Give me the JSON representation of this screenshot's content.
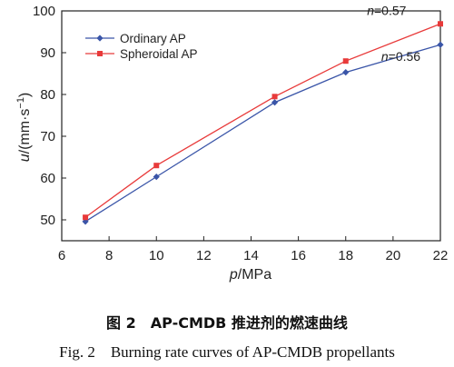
{
  "chart_data": {
    "type": "line",
    "xlabel": {
      "italic": "p",
      "rest": "/MPa"
    },
    "ylabel": {
      "italic": "u",
      "rest": "/(mm·s",
      "sup": "−1",
      "close": ")"
    },
    "xlim": [
      6,
      22
    ],
    "ylim": [
      45,
      100
    ],
    "xticks": [
      6,
      8,
      10,
      12,
      14,
      16,
      18,
      20,
      22
    ],
    "yticks": [
      50,
      60,
      70,
      80,
      90,
      100
    ],
    "grid": false,
    "legend_position": "top-left",
    "series": [
      {
        "name": "Ordinary AP",
        "marker": "diamond",
        "color": "#3a55a8",
        "x": [
          7,
          10,
          15,
          18,
          22
        ],
        "y": [
          49.6,
          60.3,
          78.1,
          85.3,
          91.9
        ]
      },
      {
        "name": "Spheroidal AP",
        "marker": "square",
        "color": "#e83a3a",
        "x": [
          7,
          10,
          15,
          18,
          22
        ],
        "y": [
          50.6,
          63.0,
          79.5,
          88.0,
          96.9
        ]
      }
    ],
    "annotations": [
      {
        "italic": "n",
        "text": "=0.57",
        "x": 18.9,
        "y": 99.0
      },
      {
        "italic": "n",
        "text": "=0.56",
        "x": 19.5,
        "y": 88.0
      }
    ]
  },
  "caption": {
    "cn": "图 2　AP-CMDB 推进剂的燃速曲线",
    "en": "Fig. 2　Burning rate curves of AP-CMDB propellants"
  }
}
